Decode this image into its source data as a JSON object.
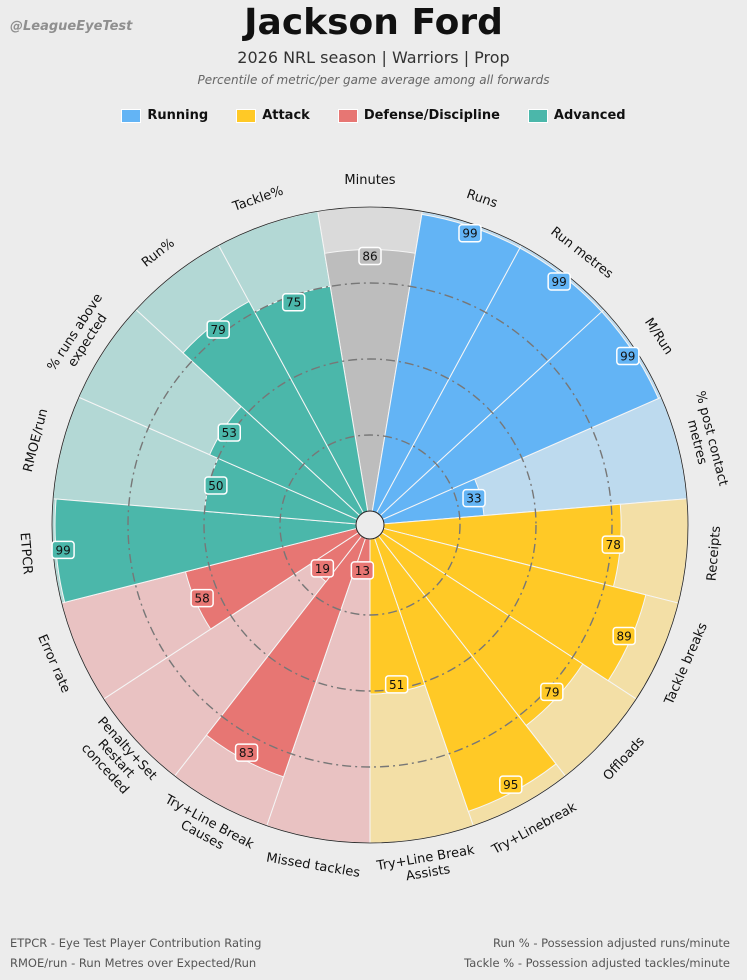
{
  "watermark": "@LeagueEyeTest",
  "chart_data": {
    "type": "polar-bar",
    "title": "Jackson Ford",
    "subtitle": "2026 NRL season | Warriors | Prop",
    "caption": "Percentile of metric/per game average among all forwards",
    "rlim": [
      0,
      100
    ],
    "legend": [
      {
        "name": "Running",
        "color": "#63b4f5"
      },
      {
        "name": "Attack",
        "color": "#ffc926"
      },
      {
        "name": "Defense/Discipline",
        "color": "#e77673"
      },
      {
        "name": "Advanced",
        "color": "#4bb7aa"
      }
    ],
    "metrics": [
      {
        "label": "Minutes",
        "value": 86,
        "group": "none"
      },
      {
        "label": "Runs",
        "value": 99,
        "group": "Running"
      },
      {
        "label": "Run metres",
        "value": 99,
        "group": "Running"
      },
      {
        "label": "M/Run",
        "value": 99,
        "group": "Running"
      },
      {
        "label": "% post contact metres",
        "value": 33,
        "group": "Running"
      },
      {
        "label": "Receipts",
        "value": 78,
        "group": "Attack"
      },
      {
        "label": "Tackle breaks",
        "value": 89,
        "group": "Attack"
      },
      {
        "label": "Offloads",
        "value": 79,
        "group": "Attack"
      },
      {
        "label": "Try+Linebreak",
        "value": 95,
        "group": "Attack"
      },
      {
        "label": "Try+Line Break Assists",
        "value": 51,
        "group": "Attack"
      },
      {
        "label": "Missed tackles",
        "value": 13,
        "group": "Defense/Discipline"
      },
      {
        "label": "Try+Line Break Causes",
        "value": 83,
        "group": "Defense/Discipline"
      },
      {
        "label": "Penalty+Set Restart conceded",
        "value": 19,
        "group": "Defense/Discipline"
      },
      {
        "label": "Error rate",
        "value": 58,
        "group": "Defense/Discipline"
      },
      {
        "label": "ETPCR",
        "value": 99,
        "group": "Advanced"
      },
      {
        "label": "RMOE/run",
        "value": 50,
        "group": "Advanced"
      },
      {
        "label": "% runs above expected",
        "value": 53,
        "group": "Advanced"
      },
      {
        "label": "Run%",
        "value": 79,
        "group": "Advanced"
      },
      {
        "label": "Tackle%",
        "value": 75,
        "group": "Advanced"
      }
    ],
    "group_colors": {
      "none": {
        "bar": "#bdbdbd",
        "bg": "#dadada"
      },
      "Running": {
        "bar": "#63b4f5",
        "bg": "#bddaee"
      },
      "Attack": {
        "bar": "#ffc926",
        "bg": "#f3dfa6"
      },
      "Defense/Discipline": {
        "bar": "#e77673",
        "bg": "#e9c2c2"
      },
      "Advanced": {
        "bar": "#4bb7aa",
        "bg": "#b3d8d5"
      }
    }
  },
  "footnotes": {
    "left": [
      "ETPCR - Eye Test Player Contribution Rating",
      "RMOE/run - Run Metres over Expected/Run"
    ],
    "right": [
      "Run % - Possession adjusted runs/minute",
      "Tackle % - Possession adjusted tackles/minute"
    ]
  }
}
